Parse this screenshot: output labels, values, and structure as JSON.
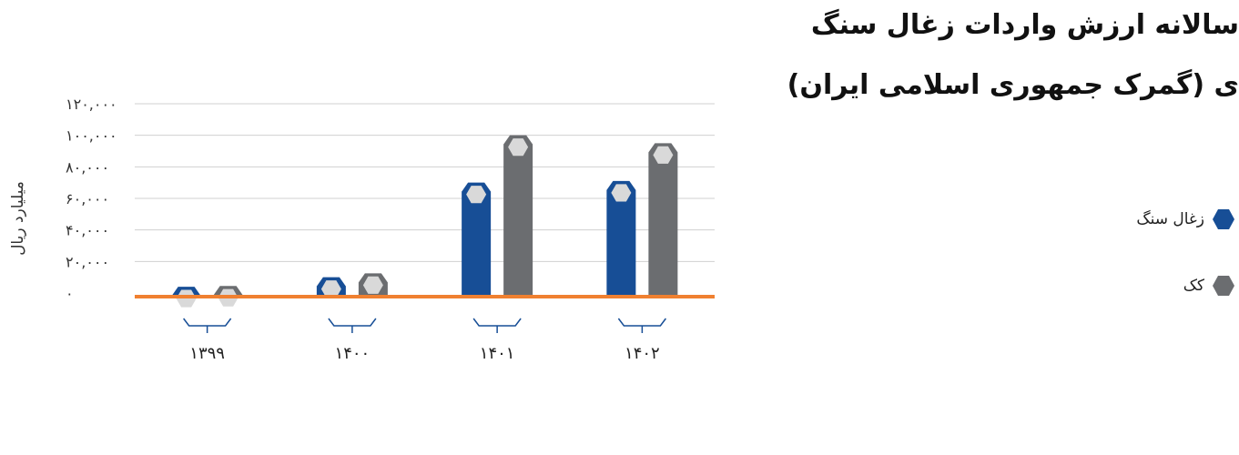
{
  "title": {
    "line1": "سالانه ارزش واردات زغال سنگ",
    "line2": "ی (گمرک جمهوری اسلامی ایران)"
  },
  "chart_data": {
    "type": "bar",
    "categories": [
      "۱۳۹۹",
      "۱۴۰۰",
      "۱۴۰۱",
      "۱۴۰۲"
    ],
    "series": [
      {
        "name": "زغال سنگ",
        "color": "#174e96",
        "values": [
          4000,
          10000,
          70000,
          71000
        ]
      },
      {
        "name": "کک",
        "color": "#6b6d70",
        "values": [
          4500,
          12500,
          100000,
          95000
        ]
      }
    ],
    "ylabel": "میلیارد ریال",
    "ylim": [
      0,
      120000
    ],
    "yticks": [
      {
        "value": 0,
        "label": "۰"
      },
      {
        "value": 20000,
        "label": "۲۰,۰۰۰"
      },
      {
        "value": 40000,
        "label": "۴۰,۰۰۰"
      },
      {
        "value": 60000,
        "label": "۶۰,۰۰۰"
      },
      {
        "value": 80000,
        "label": "۸۰,۰۰۰"
      },
      {
        "value": 100000,
        "label": "۱۰۰,۰۰۰"
      },
      {
        "value": 120000,
        "label": "۱۲۰,۰۰۰"
      }
    ],
    "grid": true,
    "legend_position": "right",
    "baseline_color": "#f08030",
    "gridline_color": "#d0d0d0",
    "cap_color": "#d9d9d9"
  }
}
